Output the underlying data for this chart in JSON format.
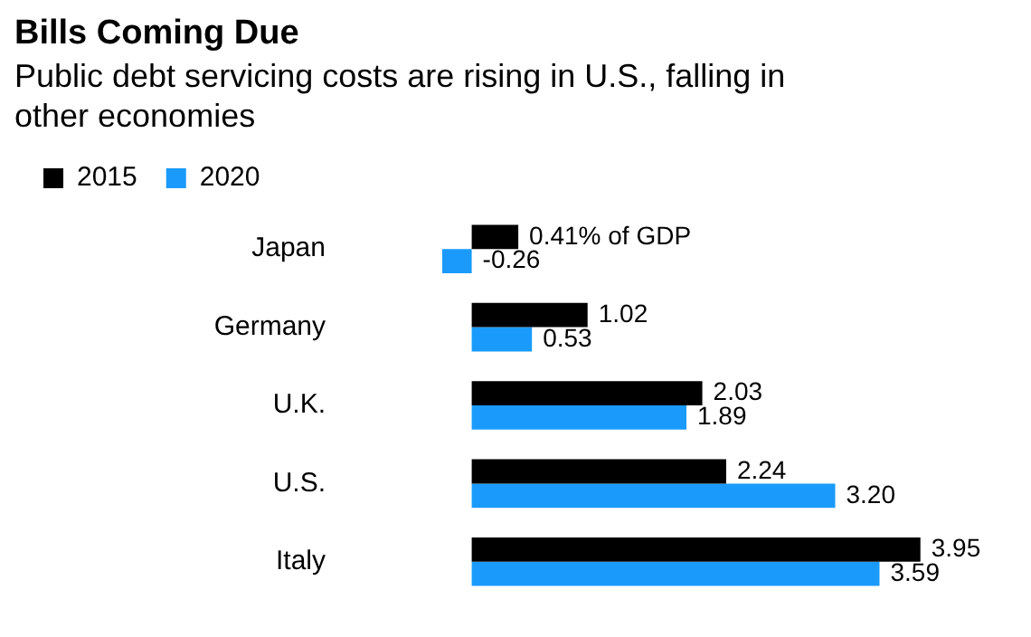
{
  "chart_data": {
    "type": "bar",
    "orientation": "horizontal",
    "title": "Bills Coming Due",
    "subtitle": "Public debt servicing costs are rising in U.S., falling in other economies",
    "categories": [
      "Japan",
      "Germany",
      "U.K.",
      "U.S.",
      "Italy"
    ],
    "legend": "top left",
    "grid": false,
    "tick_labels": "y",
    "series": [
      {
        "name": "2015",
        "color": "#000000",
        "values": [
          0.41,
          1.02,
          2.03,
          2.24,
          3.95
        ],
        "value_labels": [
          "0.41% of GDP",
          "1.02",
          "2.03",
          "2.24",
          "3.95"
        ]
      },
      {
        "name": "2020",
        "color": "#1a9bfc",
        "values": [
          -0.26,
          0.53,
          1.89,
          3.2,
          3.59
        ],
        "value_labels": [
          "-0.26",
          "0.53",
          "1.89",
          "3.20",
          "3.59"
        ]
      }
    ]
  }
}
